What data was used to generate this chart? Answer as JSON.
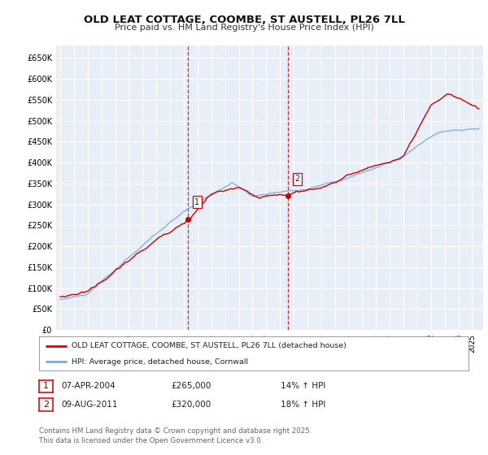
{
  "title": "OLD LEAT COTTAGE, COOMBE, ST AUSTELL, PL26 7LL",
  "subtitle": "Price paid vs. HM Land Registry's House Price Index (HPI)",
  "ylim": [
    0,
    680000
  ],
  "yticks": [
    0,
    50000,
    100000,
    150000,
    200000,
    250000,
    300000,
    350000,
    400000,
    450000,
    500000,
    550000,
    600000,
    650000
  ],
  "xlim_start": 1994.7,
  "xlim_end": 2025.8,
  "bg_color": "#e8eef8",
  "grid_color": "#ffffff",
  "line1_color": "#cc0000",
  "line2_color": "#7aaadd",
  "sale1_date": 2004.27,
  "sale1_price": 265000,
  "sale2_date": 2011.6,
  "sale2_price": 320000,
  "legend_label1": "OLD LEAT COTTAGE, COOMBE, ST AUSTELL, PL26 7LL (detached house)",
  "legend_label2": "HPI: Average price, detached house, Cornwall",
  "table_row1": [
    "1",
    "07-APR-2004",
    "£265,000",
    "14% ↑ HPI"
  ],
  "table_row2": [
    "2",
    "09-AUG-2011",
    "£320,000",
    "18% ↑ HPI"
  ],
  "footer": "Contains HM Land Registry data © Crown copyright and database right 2025.\nThis data is licensed under the Open Government Licence v3.0."
}
